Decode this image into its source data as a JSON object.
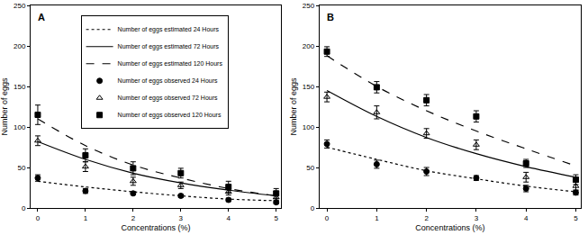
{
  "chart_data": [
    {
      "type": "scatter",
      "title": "A",
      "x_label": "Concentrations (%)",
      "y_label": "Number of eggs",
      "x": [
        0,
        1,
        2,
        3,
        4,
        5
      ],
      "xlim": [
        -0.15,
        5.1
      ],
      "xticks": [
        0,
        1,
        2,
        3,
        4,
        5
      ],
      "ylim": [
        0,
        250
      ],
      "yticks": [
        0,
        50,
        100,
        150,
        200,
        250
      ],
      "grid": false,
      "legend": "top",
      "series": [
        {
          "name": "Number of eggs estimated 24 Hours",
          "type": "line",
          "line_style": "dotted",
          "color": "#000000",
          "values": [
            33,
            26,
            20,
            15,
            11,
            9
          ]
        },
        {
          "name": "Number of eggs estimated 72 Hours",
          "type": "line",
          "line_style": "solid",
          "color": "#000000",
          "values": [
            82,
            60,
            43,
            31,
            22,
            15
          ]
        },
        {
          "name": "Number of eggs estimated 120 Hours",
          "type": "line",
          "line_style": "dashed",
          "color": "#000000",
          "values": [
            110,
            77,
            53,
            37,
            24,
            15
          ]
        },
        {
          "name": "Number of eggs observed 24 Hours",
          "type": "scatter",
          "marker": "circle",
          "color": "#000000",
          "values": [
            37,
            21,
            18,
            15,
            10,
            7
          ],
          "errors": [
            4,
            3,
            2,
            2,
            2,
            2
          ]
        },
        {
          "name": "Number of eggs observed 72 Hours",
          "type": "scatter",
          "marker": "triangle-up-open",
          "color": "#000000",
          "values": [
            83,
            51,
            33,
            28,
            20,
            13
          ],
          "errors": [
            6,
            6,
            5,
            4,
            4,
            4
          ]
        },
        {
          "name": "Number of eggs observed 120 Hours",
          "type": "scatter",
          "marker": "square",
          "color": "#000000",
          "values": [
            115,
            65,
            49,
            43,
            26,
            18
          ],
          "errors": [
            12,
            8,
            8,
            6,
            7,
            6
          ]
        }
      ]
    },
    {
      "type": "scatter",
      "title": "B",
      "x_label": "Concentrations (%)",
      "y_label": "Number of eggs",
      "x": [
        0,
        1,
        2,
        3,
        4,
        5
      ],
      "xlim": [
        -0.15,
        5.1
      ],
      "xticks": [
        0,
        1,
        2,
        3,
        4,
        5
      ],
      "ylim": [
        0,
        250
      ],
      "yticks": [
        0,
        50,
        100,
        150,
        200,
        250
      ],
      "grid": false,
      "series": [
        {
          "name": "Number of eggs estimated 24 Hours",
          "type": "line",
          "line_style": "dotted",
          "color": "#000000",
          "values": [
            75,
            60,
            46,
            36,
            27,
            20
          ]
        },
        {
          "name": "Number of eggs estimated 72 Hours",
          "type": "line",
          "line_style": "solid",
          "color": "#000000",
          "values": [
            145,
            113,
            87,
            67,
            51,
            38
          ]
        },
        {
          "name": "Number of eggs estimated 120 Hours",
          "type": "line",
          "line_style": "dashed",
          "color": "#000000",
          "values": [
            188,
            150,
            120,
            95,
            73,
            52
          ]
        },
        {
          "name": "Number of eggs observed 24 Hours",
          "type": "scatter",
          "marker": "circle",
          "color": "#000000",
          "values": [
            79,
            54,
            45,
            37,
            24,
            19
          ],
          "errors": [
            5,
            5,
            5,
            3,
            4,
            3
          ]
        },
        {
          "name": "Number of eggs observed 72 Hours",
          "type": "scatter",
          "marker": "triangle-up-open",
          "color": "#000000",
          "values": [
            137,
            118,
            92,
            78,
            38,
            27
          ],
          "errors": [
            6,
            8,
            6,
            6,
            6,
            5
          ]
        },
        {
          "name": "Number of eggs observed 120 Hours",
          "type": "scatter",
          "marker": "square",
          "color": "#000000",
          "values": [
            193,
            149,
            133,
            113,
            55,
            35
          ],
          "errors": [
            6,
            7,
            7,
            7,
            5,
            6
          ]
        }
      ]
    }
  ]
}
